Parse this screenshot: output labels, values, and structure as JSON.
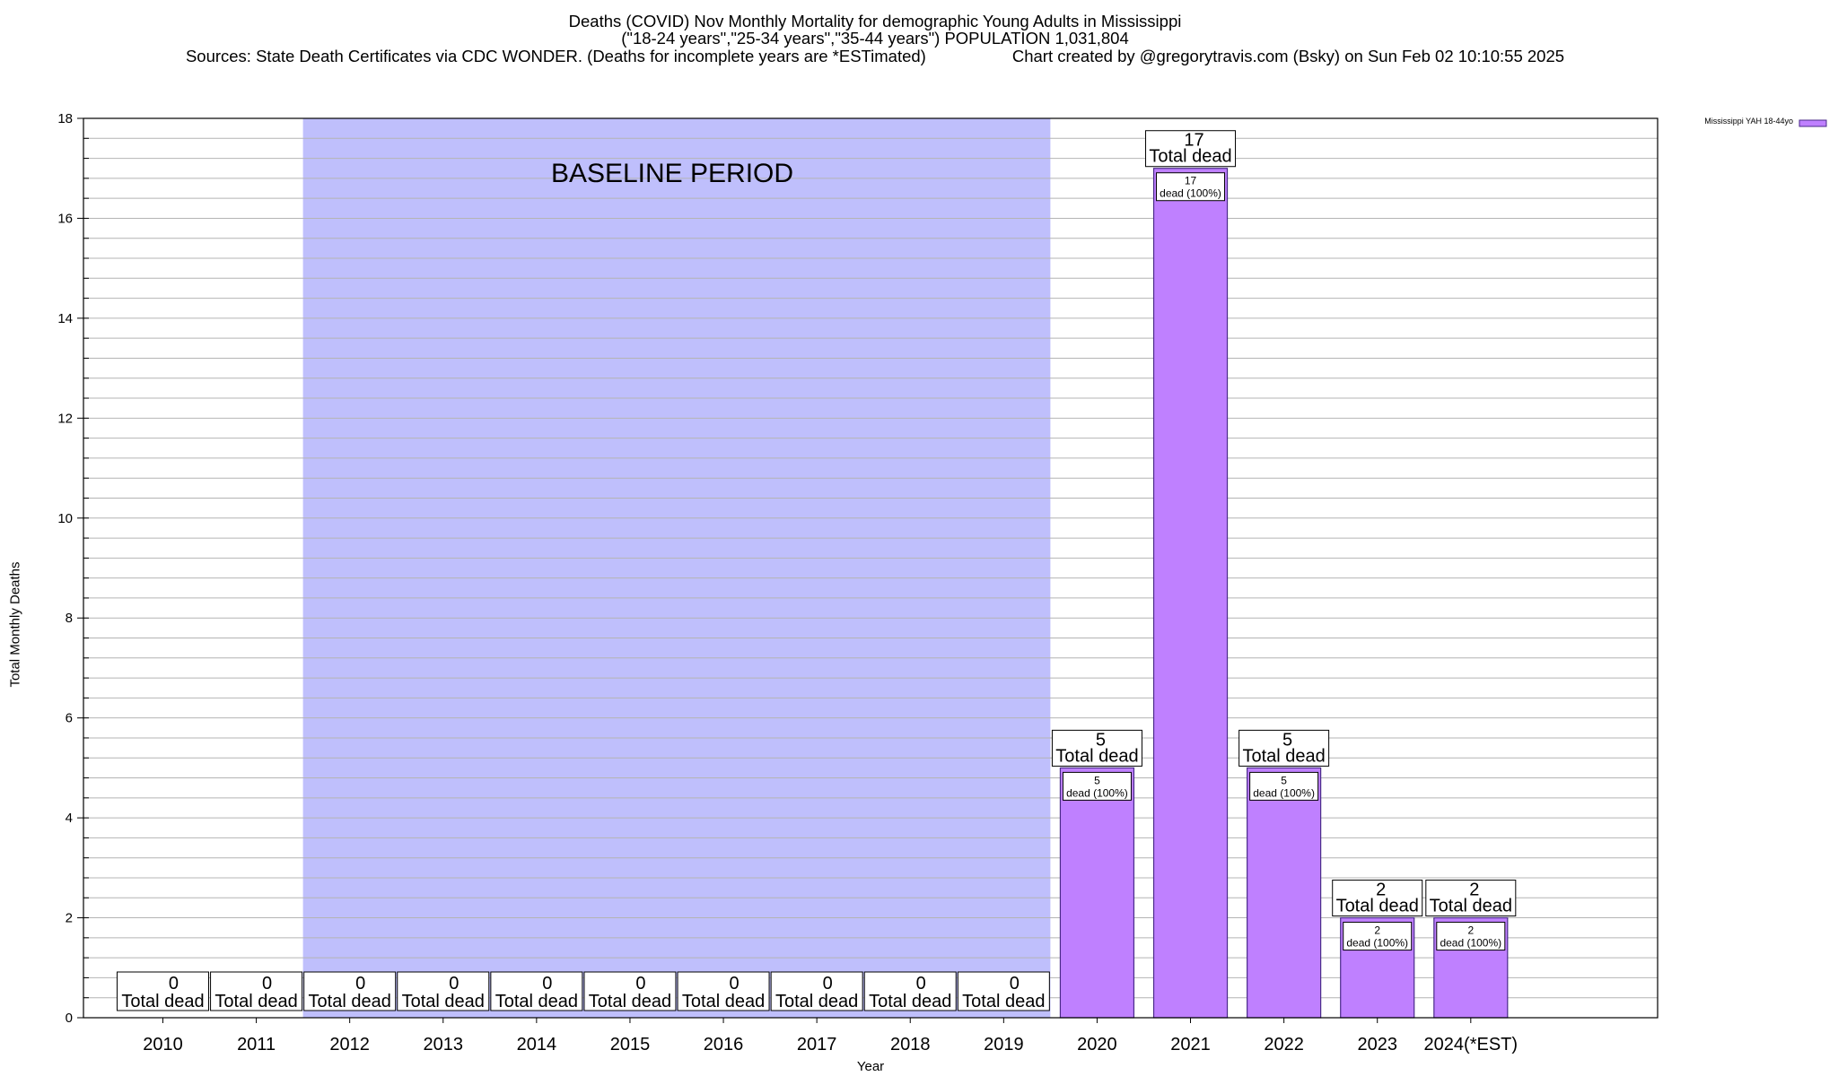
{
  "chart_data": {
    "type": "bar",
    "title": "Deaths (COVID) Nov Monthly Mortality for demographic Young Adults in Mississippi",
    "subtitle": "(\"18-24 years\",\"25-34 years\",\"35-44 years\") POPULATION 1,031,804",
    "sources": "Sources: State Death Certificates via CDC WONDER. (Deaths for incomplete years are *ESTimated)",
    "credit": "Chart created by @gregorytravis.com (Bsky) on Sun Feb 02 10:10:55 2025",
    "xlabel": "Year",
    "ylabel": "Total Monthly Deaths",
    "ylim": [
      0,
      18
    ],
    "yticks": [
      0,
      2,
      4,
      6,
      8,
      10,
      12,
      14,
      16,
      18
    ],
    "grid": true,
    "legend_position": "top-right",
    "categories": [
      "2010",
      "2011",
      "2012",
      "2013",
      "2014",
      "2015",
      "2016",
      "2017",
      "2018",
      "2019",
      "2020",
      "2021",
      "2022",
      "2023",
      "2024(*EST)"
    ],
    "series": [
      {
        "name": "Mississippi YAH 18-44yo",
        "color": "#bf80ff",
        "values": [
          0,
          0,
          0,
          0,
          0,
          0,
          0,
          0,
          0,
          0,
          5,
          17,
          5,
          2,
          2
        ]
      }
    ],
    "total_label": "Total dead",
    "segment_label": "dead (100%)",
    "baseline": {
      "label": "BASELINE PERIOD",
      "from": "2012",
      "to": "2019",
      "color": "#bfbffc"
    }
  }
}
